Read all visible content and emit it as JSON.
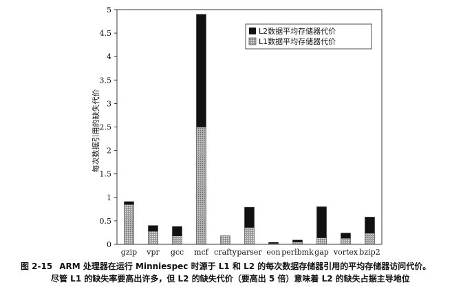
{
  "chart_data": {
    "type": "bar",
    "stacked": true,
    "categories": [
      "gzip",
      "vpr",
      "gcc",
      "mcf",
      "crafty",
      "parser",
      "eon",
      "perlbmk",
      "gap",
      "vortex",
      "bzip2"
    ],
    "series": [
      {
        "name": "L1数据平均存储器代价",
        "color": "#a8a8a8",
        "values": [
          0.85,
          0.28,
          0.18,
          2.5,
          0.18,
          0.36,
          0.02,
          0.05,
          0.14,
          0.13,
          0.24
        ]
      },
      {
        "name": "L2数据平均存储器代价",
        "color": "#111111",
        "values": [
          0.06,
          0.12,
          0.2,
          2.4,
          0.0,
          0.43,
          0.02,
          0.04,
          0.66,
          0.11,
          0.34
        ]
      }
    ],
    "ylabel": "每次数据引用的缺失代价",
    "xlabel": "",
    "ylim": [
      0,
      5
    ],
    "yticks": [
      "0",
      "0.5",
      "1",
      "1.5",
      "2",
      "2.5",
      "3",
      "3.5",
      "4",
      "4.5",
      "5"
    ],
    "grid": false,
    "legend_position": "top-right"
  },
  "caption": {
    "figure_number": "图 2-15",
    "line1": "ARM 处理器在运行 Minniespec 时源于 L1 和 L2 的每次数据存储器引用的平均存储器访问代价。",
    "line2": "尽管 L1 的缺失率要高出许多，但 L2 的缺失代价（要高出 5 倍）意味着 L2 的缺失占据主导地位"
  }
}
